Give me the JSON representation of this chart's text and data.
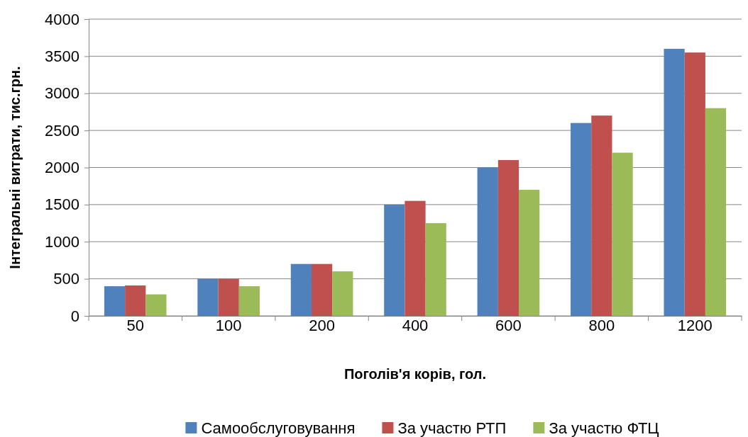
{
  "chart_data": {
    "type": "bar",
    "xlabel": "Поголів'я корів, гол.",
    "ylabel": "Інтегральні витрати, тис.грн.",
    "categories": [
      "50",
      "100",
      "200",
      "400",
      "600",
      "800",
      "1200"
    ],
    "series": [
      {
        "name": "Самообслуговування",
        "color": "#4f81bd",
        "values": [
          400,
          500,
          700,
          1500,
          2000,
          2600,
          3600
        ]
      },
      {
        "name": "За участю РТП",
        "color": "#c0504d",
        "values": [
          410,
          500,
          700,
          1550,
          2100,
          2700,
          3550
        ]
      },
      {
        "name": "За участю ФТЦ",
        "color": "#9bbb59",
        "values": [
          290,
          400,
          600,
          1250,
          1700,
          2200,
          2800
        ]
      }
    ],
    "ylim": [
      0,
      4000
    ],
    "yticks": [
      0,
      500,
      1000,
      1500,
      2000,
      2500,
      3000,
      3500,
      4000
    ],
    "grid": "y",
    "legend": "bottom"
  }
}
